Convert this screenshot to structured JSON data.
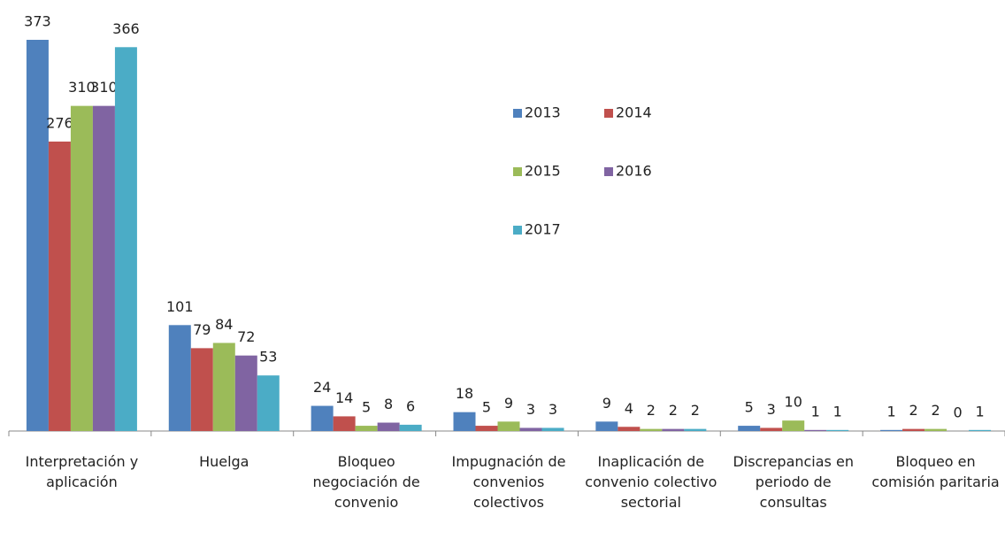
{
  "chart_data": {
    "type": "bar",
    "categories": [
      "Interpretación y aplicación",
      "Huelga",
      "Bloqueo negociación de convenio",
      "Impugnación de convenios colectivos",
      "Inaplicación de convenio colectivo sectorial",
      "Discrepancias en periodo de consultas",
      "Bloqueo en comisión paritaria"
    ],
    "series": [
      {
        "name": "2013",
        "color": "#4f81bd",
        "values": [
          373,
          101,
          24,
          18,
          9,
          5,
          1
        ]
      },
      {
        "name": "2014",
        "color": "#c0504d",
        "values": [
          276,
          79,
          14,
          5,
          4,
          3,
          2
        ]
      },
      {
        "name": "2015",
        "color": "#9bbb59",
        "values": [
          310,
          84,
          5,
          9,
          2,
          10,
          2
        ]
      },
      {
        "name": "2016",
        "color": "#8064a2",
        "values": [
          310,
          72,
          8,
          3,
          2,
          1,
          0
        ]
      },
      {
        "name": "2017",
        "color": "#4bacc6",
        "values": [
          366,
          53,
          6,
          3,
          2,
          1,
          1
        ]
      }
    ],
    "ylim": [
      0,
      400
    ]
  }
}
